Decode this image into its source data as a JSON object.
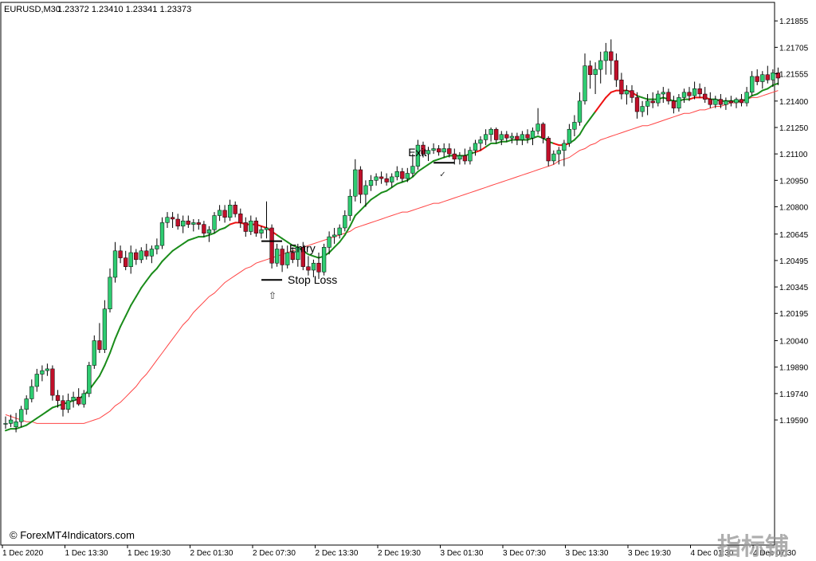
{
  "header": {
    "symbol": "EURUSD,M30",
    "ohlc": "1.23372 1.23410 1.23341 1.23373"
  },
  "copyright": "© ForexMT4Indicators.com",
  "watermark": "指标铺",
  "colors": {
    "bull": "#2ecc71",
    "bear": "#c0102a",
    "wick": "#000000",
    "fast_ma_up": "#1a8c1a",
    "fast_ma_down": "#ee1111",
    "slow_ma": "#ff4444"
  },
  "chart_data": {
    "type": "candlestick",
    "ylim": [
      1.1888,
      1.2196
    ],
    "y_ticks": [
      "1.21855",
      "1.21705",
      "1.21555",
      "1.21400",
      "1.21250",
      "1.21100",
      "1.20950",
      "1.20800",
      "1.20645",
      "1.20495",
      "1.20345",
      "1.20195",
      "1.20040",
      "1.19890",
      "1.19740",
      "1.19590"
    ],
    "x_ticks": [
      "1 Dec 2020",
      "1 Dec 13:30",
      "1 Dec 19:30",
      "2 Dec 01:30",
      "2 Dec 07:30",
      "2 Dec 13:30",
      "2 Dec 19:30",
      "3 Dec 01:30",
      "3 Dec 07:30",
      "3 Dec 13:30",
      "3 Dec 19:30",
      "4 Dec 01:30",
      "4 Dec 07:30"
    ],
    "candles": [
      [
        1.1957,
        1.1961,
        1.1954,
        1.1957
      ],
      [
        1.1957,
        1.1962,
        1.1955,
        1.1959
      ],
      [
        1.1955,
        1.1963,
        1.1952,
        1.1958
      ],
      [
        1.1958,
        1.1967,
        1.1955,
        1.1965
      ],
      [
        1.1965,
        1.1973,
        1.1962,
        1.1971
      ],
      [
        1.1971,
        1.1982,
        1.1969,
        1.1978
      ],
      [
        1.1978,
        1.1988,
        1.1975,
        1.1985
      ],
      [
        1.1985,
        1.199,
        1.1981,
        1.1987
      ],
      [
        1.1987,
        1.1991,
        1.1984,
        1.1988
      ],
      [
        1.1988,
        1.199,
        1.197,
        1.1973
      ],
      [
        1.1973,
        1.1976,
        1.1966,
        1.197
      ],
      [
        1.197,
        1.1973,
        1.1961,
        1.1965
      ],
      [
        1.1965,
        1.1974,
        1.1963,
        1.197
      ],
      [
        1.197,
        1.1975,
        1.1966,
        1.1972
      ],
      [
        1.1972,
        1.1977,
        1.1967,
        1.1968
      ],
      [
        1.1968,
        1.1976,
        1.1966,
        1.1974
      ],
      [
        1.1974,
        1.1992,
        1.1972,
        1.199
      ],
      [
        1.199,
        1.2007,
        1.1988,
        1.2004
      ],
      [
        1.2004,
        1.2014,
        1.1997,
        1.1999
      ],
      [
        1.1999,
        1.2027,
        1.1997,
        1.2022
      ],
      [
        1.2022,
        1.2045,
        1.202,
        1.204
      ],
      [
        1.204,
        1.206,
        1.2037,
        1.2055
      ],
      [
        1.2055,
        1.2058,
        1.2048,
        1.2051
      ],
      [
        1.2051,
        1.2055,
        1.2044,
        1.2046
      ],
      [
        1.2046,
        1.2058,
        1.2042,
        1.2054
      ],
      [
        1.2054,
        1.2056,
        1.2047,
        1.205
      ],
      [
        1.205,
        1.2057,
        1.2048,
        1.2055
      ],
      [
        1.2055,
        1.2059,
        1.205,
        1.2052
      ],
      [
        1.2052,
        1.2058,
        1.2048,
        1.2056
      ],
      [
        1.2056,
        1.2062,
        1.2053,
        1.2058
      ],
      [
        1.2058,
        1.2074,
        1.2056,
        1.2071
      ],
      [
        1.2071,
        1.2077,
        1.2068,
        1.2074
      ],
      [
        1.2074,
        1.2077,
        1.2068,
        1.2073
      ],
      [
        1.2073,
        1.2076,
        1.2067,
        1.2069
      ],
      [
        1.2069,
        1.2075,
        1.2065,
        1.2072
      ],
      [
        1.2072,
        1.2075,
        1.2068,
        1.207
      ],
      [
        1.207,
        1.2073,
        1.2066,
        1.2071
      ],
      [
        1.2071,
        1.2073,
        1.2067,
        1.207
      ],
      [
        1.207,
        1.2072,
        1.2063,
        1.2065
      ],
      [
        1.2065,
        1.2069,
        1.206,
        1.2067
      ],
      [
        1.2067,
        1.2077,
        1.2065,
        1.2075
      ],
      [
        1.2075,
        1.2081,
        1.2072,
        1.2078
      ],
      [
        1.2078,
        1.2081,
        1.2071,
        1.2074
      ],
      [
        1.2074,
        1.2084,
        1.2072,
        1.2081
      ],
      [
        1.2081,
        1.2083,
        1.2074,
        1.2076
      ],
      [
        1.2076,
        1.2079,
        1.2068,
        1.2071
      ],
      [
        1.2071,
        1.2074,
        1.2063,
        1.2066
      ],
      [
        1.2066,
        1.2075,
        1.2064,
        1.2072
      ],
      [
        1.2072,
        1.2074,
        1.2063,
        1.2065
      ],
      [
        1.2065,
        1.2069,
        1.2062,
        1.2067
      ],
      [
        1.2067,
        1.2083,
        1.2062,
        1.2068
      ],
      [
        1.2068,
        1.207,
        1.2045,
        1.2048
      ],
      [
        1.2048,
        1.2059,
        1.2046,
        1.2056
      ],
      [
        1.2056,
        1.2058,
        1.2043,
        1.2047
      ],
      [
        1.2047,
        1.2058,
        1.2045,
        1.2054
      ],
      [
        1.2054,
        1.2057,
        1.2048,
        1.205
      ],
      [
        1.205,
        1.2059,
        1.2046,
        1.2057
      ],
      [
        1.2057,
        1.206,
        1.2044,
        1.2046
      ],
      [
        1.2046,
        1.2052,
        1.2041,
        1.2044
      ],
      [
        1.2044,
        1.205,
        1.204,
        1.2048
      ],
      [
        1.2048,
        1.2054,
        1.2039,
        1.2043
      ],
      [
        1.2043,
        1.2059,
        1.2041,
        1.2057
      ],
      [
        1.2057,
        1.2066,
        1.2053,
        1.2063
      ],
      [
        1.2063,
        1.2068,
        1.2059,
        1.2064
      ],
      [
        1.2064,
        1.207,
        1.2062,
        1.2068
      ],
      [
        1.2068,
        1.2078,
        1.2066,
        1.2075
      ],
      [
        1.2075,
        1.209,
        1.2072,
        1.2086
      ],
      [
        1.2086,
        1.2107,
        1.2083,
        1.2101
      ],
      [
        1.2101,
        1.2103,
        1.2082,
        1.2087
      ],
      [
        1.2087,
        1.2095,
        1.208,
        1.2092
      ],
      [
        1.2092,
        1.2098,
        1.2089,
        1.2095
      ],
      [
        1.2095,
        1.2099,
        1.2092,
        1.2097
      ],
      [
        1.2097,
        1.21,
        1.2093,
        1.2096
      ],
      [
        1.2096,
        1.2099,
        1.2092,
        1.2094
      ],
      [
        1.2094,
        1.2099,
        1.2091,
        1.2097
      ],
      [
        1.2097,
        1.2103,
        1.2095,
        1.21
      ],
      [
        1.21,
        1.2102,
        1.2094,
        1.2096
      ],
      [
        1.2096,
        1.2102,
        1.2094,
        1.2099
      ],
      [
        1.2099,
        1.211,
        1.2097,
        1.2103
      ],
      [
        1.2103,
        1.2118,
        1.2101,
        1.2115
      ],
      [
        1.2115,
        1.2117,
        1.2108,
        1.211
      ],
      [
        1.211,
        1.2114,
        1.2106,
        1.2112
      ],
      [
        1.2112,
        1.2116,
        1.211,
        1.2113
      ],
      [
        1.2113,
        1.2115,
        1.2109,
        1.2111
      ],
      [
        1.2111,
        1.2116,
        1.2108,
        1.2113
      ],
      [
        1.2113,
        1.2116,
        1.2108,
        1.211
      ],
      [
        1.211,
        1.2113,
        1.2104,
        1.2107
      ],
      [
        1.2107,
        1.2111,
        1.2104,
        1.2109
      ],
      [
        1.2109,
        1.2113,
        1.2104,
        1.2106
      ],
      [
        1.2106,
        1.2114,
        1.2104,
        1.2112
      ],
      [
        1.2112,
        1.2118,
        1.2109,
        1.2116
      ],
      [
        1.2116,
        1.212,
        1.2112,
        1.2118
      ],
      [
        1.2118,
        1.2124,
        1.2115,
        1.2121
      ],
      [
        1.2121,
        1.2125,
        1.2117,
        1.2124
      ],
      [
        1.2124,
        1.2125,
        1.2116,
        1.2118
      ],
      [
        1.2118,
        1.2123,
        1.2115,
        1.2121
      ],
      [
        1.2121,
        1.2123,
        1.2117,
        1.2119
      ],
      [
        1.2119,
        1.2122,
        1.2116,
        1.212
      ],
      [
        1.212,
        1.2122,
        1.2115,
        1.2118
      ],
      [
        1.2118,
        1.2123,
        1.2115,
        1.2121
      ],
      [
        1.2121,
        1.2124,
        1.2116,
        1.2119
      ],
      [
        1.2119,
        1.2125,
        1.2115,
        1.2123
      ],
      [
        1.2123,
        1.2136,
        1.2121,
        1.2127
      ],
      [
        1.2127,
        1.2128,
        1.2116,
        1.2119
      ],
      [
        1.2119,
        1.212,
        1.2103,
        1.2106
      ],
      [
        1.2106,
        1.2112,
        1.2104,
        1.211
      ],
      [
        1.211,
        1.2114,
        1.2104,
        1.2112
      ],
      [
        1.2112,
        1.2118,
        1.2103,
        1.2116
      ],
      [
        1.2116,
        1.2127,
        1.2114,
        1.2124
      ],
      [
        1.2124,
        1.2132,
        1.212,
        1.2128
      ],
      [
        1.2128,
        1.2145,
        1.2126,
        1.214
      ],
      [
        1.214,
        1.2167,
        1.2138,
        1.216
      ],
      [
        1.216,
        1.2163,
        1.2147,
        1.2155
      ],
      [
        1.2155,
        1.2162,
        1.2144,
        1.2158
      ],
      [
        1.2158,
        1.2168,
        1.215,
        1.2163
      ],
      [
        1.2163,
        1.2173,
        1.2155,
        1.2168
      ],
      [
        1.2168,
        1.2175,
        1.2155,
        1.2163
      ],
      [
        1.2163,
        1.2167,
        1.2148,
        1.2152
      ],
      [
        1.2152,
        1.2156,
        1.2141,
        1.2144
      ],
      [
        1.2144,
        1.2149,
        1.2138,
        1.2146
      ],
      [
        1.2146,
        1.2149,
        1.2139,
        1.2142
      ],
      [
        1.2142,
        1.2145,
        1.213,
        1.2134
      ],
      [
        1.2134,
        1.214,
        1.2131,
        1.2137
      ],
      [
        1.2137,
        1.2144,
        1.2132,
        1.214
      ],
      [
        1.214,
        1.2145,
        1.2136,
        1.2139
      ],
      [
        1.2139,
        1.2146,
        1.2137,
        1.2144
      ],
      [
        1.2144,
        1.2148,
        1.2139,
        1.2145
      ],
      [
        1.2145,
        1.2147,
        1.2138,
        1.214
      ],
      [
        1.214,
        1.2143,
        1.2133,
        1.2136
      ],
      [
        1.2136,
        1.2144,
        1.2134,
        1.2142
      ],
      [
        1.2142,
        1.2147,
        1.2139,
        1.2145
      ],
      [
        1.2145,
        1.2148,
        1.214,
        1.2143
      ],
      [
        1.2143,
        1.2151,
        1.2141,
        1.2147
      ],
      [
        1.2147,
        1.215,
        1.2142,
        1.2144
      ],
      [
        1.2144,
        1.2148,
        1.2139,
        1.2141
      ],
      [
        1.2141,
        1.2145,
        1.2136,
        1.2138
      ],
      [
        1.2138,
        1.2143,
        1.2136,
        1.2141
      ],
      [
        1.2141,
        1.2144,
        1.2136,
        1.2138
      ],
      [
        1.2138,
        1.2142,
        1.2135,
        1.214
      ],
      [
        1.214,
        1.2143,
        1.2137,
        1.2139
      ],
      [
        1.2139,
        1.2142,
        1.2136,
        1.2141
      ],
      [
        1.2141,
        1.2144,
        1.2137,
        1.2139
      ],
      [
        1.2139,
        1.2148,
        1.2137,
        1.2145
      ],
      [
        1.2145,
        1.2157,
        1.2143,
        1.2154
      ],
      [
        1.2154,
        1.2158,
        1.2149,
        1.2151
      ],
      [
        1.2151,
        1.2157,
        1.2147,
        1.2155
      ],
      [
        1.2155,
        1.216,
        1.215,
        1.2152
      ],
      [
        1.2152,
        1.2158,
        1.2148,
        1.2156
      ],
      [
        1.2156,
        1.2159,
        1.2149,
        1.2153
      ]
    ],
    "fast_ma": [
      1.1953,
      1.1954,
      1.1954,
      1.1955,
      1.1956,
      1.1958,
      1.196,
      1.1962,
      1.1964,
      1.1966,
      1.1967,
      1.1968,
      1.1969,
      1.197,
      1.1971,
      1.1973,
      1.1976,
      1.198,
      1.1984,
      1.199,
      1.1997,
      1.2005,
      1.2012,
      1.2018,
      1.2024,
      1.2029,
      1.2034,
      1.2038,
      1.2042,
      1.2045,
      1.2049,
      1.2052,
      1.2055,
      1.2057,
      1.2059,
      1.2061,
      1.2062,
      1.2063,
      1.2063,
      1.2064,
      1.2065,
      1.2067,
      1.2068,
      1.207,
      1.2071,
      1.2071,
      1.207,
      1.207,
      1.207,
      1.2069,
      1.2068,
      1.2066,
      1.2064,
      1.2062,
      1.206,
      1.2058,
      1.2057,
      1.2055,
      1.2053,
      1.2052,
      1.2051,
      1.2052,
      1.2054,
      1.2057,
      1.206,
      1.2064,
      1.2069,
      1.2075,
      1.2078,
      1.2081,
      1.2084,
      1.2086,
      1.2088,
      1.2089,
      1.2091,
      1.2093,
      1.2094,
      1.2095,
      1.2097,
      1.21,
      1.2102,
      1.2104,
      1.2106,
      1.2107,
      1.2108,
      1.2109,
      1.2109,
      1.2109,
      1.2109,
      1.211,
      1.2111,
      1.2112,
      1.2114,
      1.2116,
      1.2116,
      1.2117,
      1.2117,
      1.2118,
      1.2118,
      1.2118,
      1.2118,
      1.2119,
      1.212,
      1.2119,
      1.2117,
      1.2116,
      1.2115,
      1.2115,
      1.2116,
      1.2118,
      1.2121,
      1.2126,
      1.213,
      1.2134,
      1.2138,
      1.2142,
      1.2145,
      1.2146,
      1.2146,
      1.2146,
      1.2145,
      1.2143,
      1.2142,
      1.2141,
      1.2141,
      1.2141,
      1.2142,
      1.2141,
      1.214,
      1.214,
      1.2141,
      1.2141,
      1.2142,
      1.2142,
      1.2142,
      1.2141,
      1.2141,
      1.214,
      1.214,
      1.214,
      1.214,
      1.214,
      1.2141,
      1.2143,
      1.2144,
      1.2146,
      1.2147,
      1.2149,
      1.215
    ],
    "slow_ma": [
      1.1962,
      1.1961,
      1.196,
      1.1959,
      1.1958,
      1.1958,
      1.1957,
      1.1957,
      1.1957,
      1.1957,
      1.1957,
      1.1957,
      1.1957,
      1.1957,
      1.1957,
      1.1957,
      1.1958,
      1.1959,
      1.196,
      1.1962,
      1.1964,
      1.1967,
      1.1969,
      1.1972,
      1.1975,
      1.1978,
      1.1982,
      1.1985,
      1.1989,
      1.1993,
      1.1997,
      1.2001,
      1.2005,
      1.2009,
      1.2013,
      1.2016,
      1.202,
      1.2023,
      1.2026,
      1.2029,
      1.2031,
      1.2034,
      1.2037,
      1.2039,
      1.2041,
      1.2043,
      1.2045,
      1.2046,
      1.2048,
      1.2049,
      1.205,
      1.2051,
      1.2052,
      1.2053,
      1.2054,
      1.2055,
      1.2056,
      1.2057,
      1.2058,
      1.2059,
      1.206,
      1.2061,
      1.2062,
      1.2063,
      1.2064,
      1.2065,
      1.2066,
      1.2068,
      1.2069,
      1.207,
      1.2071,
      1.2072,
      1.2073,
      1.2074,
      1.2075,
      1.2076,
      1.2077,
      1.2077,
      1.2078,
      1.2079,
      1.208,
      1.2081,
      1.2082,
      1.2082,
      1.2083,
      1.2084,
      1.2085,
      1.2086,
      1.2087,
      1.2088,
      1.2089,
      1.209,
      1.2091,
      1.2092,
      1.2093,
      1.2094,
      1.2095,
      1.2096,
      1.2097,
      1.2098,
      1.2099,
      1.21,
      1.2101,
      1.2102,
      1.2103,
      1.2104,
      1.2106,
      1.2107,
      1.2108,
      1.211,
      1.2112,
      1.2113,
      1.2115,
      1.2116,
      1.2118,
      1.2119,
      1.212,
      1.2121,
      1.2122,
      1.2123,
      1.2124,
      1.2125,
      1.2126,
      1.2126,
      1.2127,
      1.2128,
      1.2129,
      1.213,
      1.2131,
      1.2132,
      1.2133,
      1.2133,
      1.2134,
      1.2135,
      1.2135,
      1.2136,
      1.2137,
      1.2137,
      1.2138,
      1.2139,
      1.2139,
      1.214,
      1.2141,
      1.2142,
      1.2142,
      1.2143,
      1.2144,
      1.2145,
      1.2146
    ],
    "fast_ma_red_segments": [
      [
        43,
        52
      ],
      [
        90,
        92
      ],
      [
        105,
        108
      ],
      [
        113,
        121
      ],
      [
        131,
        135
      ]
    ],
    "annotations": {
      "entry_label": "Entry",
      "stop_label": "Stop Loss",
      "exit_label": "Exit",
      "entry_price": 1.20605,
      "stop_price": 1.20385,
      "exit_price": 1.2105,
      "entry_index": 51,
      "exit_index": 84,
      "buy_arrow": "⇧",
      "close_mark": "✓"
    }
  }
}
